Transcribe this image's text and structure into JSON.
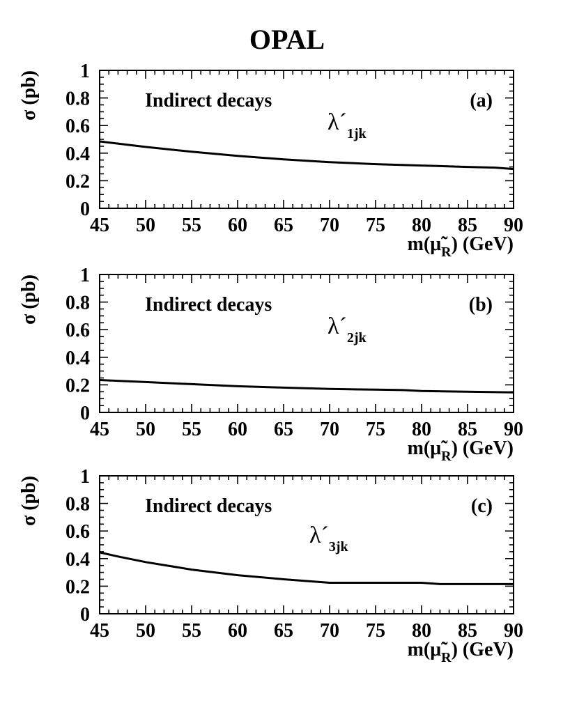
{
  "title": "OPAL",
  "chart_data": [
    {
      "type": "line",
      "panel_label": "(a)",
      "annotation": "Indirect decays",
      "coupling_symbol": "λ´",
      "coupling_subscript": "1jk",
      "ylabel": "σ (pb)",
      "xlabel": "m(μ̃R) (GeV)",
      "xlabel_main": "m(",
      "xlabel_symbol": "μ̃",
      "xlabel_sub": "R",
      "xlabel_units": ") (GeV)",
      "xlim": [
        45,
        90
      ],
      "ylim": [
        0,
        1
      ],
      "x_ticks": [
        45,
        50,
        55,
        60,
        65,
        70,
        75,
        80,
        85,
        90
      ],
      "y_ticks": [
        0,
        0.2,
        0.4,
        0.6,
        0.8,
        1
      ],
      "y_tick_labels": [
        "0",
        "0.2",
        "0.4",
        "0.6",
        "0.8",
        "1"
      ],
      "series": [
        {
          "x": [
            45,
            50,
            55,
            60,
            65,
            70,
            75,
            80,
            85,
            88,
            90
          ],
          "y": [
            0.485,
            0.445,
            0.41,
            0.38,
            0.355,
            0.335,
            0.32,
            0.31,
            0.3,
            0.295,
            0.285
          ]
        }
      ]
    },
    {
      "type": "line",
      "panel_label": "(b)",
      "annotation": "Indirect decays",
      "coupling_symbol": "λ´",
      "coupling_subscript": "2jk",
      "ylabel": "σ (pb)",
      "xlabel": "m(μ̃R) (GeV)",
      "xlabel_main": "m(",
      "xlabel_symbol": "μ̃",
      "xlabel_sub": "R",
      "xlabel_units": ") (GeV)",
      "xlim": [
        45,
        90
      ],
      "ylim": [
        0,
        1
      ],
      "x_ticks": [
        45,
        50,
        55,
        60,
        65,
        70,
        75,
        80,
        85,
        90
      ],
      "y_ticks": [
        0,
        0.2,
        0.4,
        0.6,
        0.8,
        1
      ],
      "y_tick_labels": [
        "0",
        "0.2",
        "0.4",
        "0.6",
        "0.8",
        "1"
      ],
      "series": [
        {
          "x": [
            45,
            50,
            55,
            60,
            65,
            70,
            75,
            78,
            80,
            85,
            90
          ],
          "y": [
            0.235,
            0.22,
            0.205,
            0.19,
            0.18,
            0.17,
            0.165,
            0.162,
            0.155,
            0.15,
            0.145
          ]
        }
      ]
    },
    {
      "type": "line",
      "panel_label": "(c)",
      "annotation": "Indirect decays",
      "coupling_symbol": "λ´",
      "coupling_subscript": "3jk",
      "ylabel": "σ (pb)",
      "xlabel": "m(μ̃R) (GeV)",
      "xlabel_main": "m(",
      "xlabel_symbol": "μ̃",
      "xlabel_sub": "R",
      "xlabel_units": ") (GeV)",
      "xlim": [
        45,
        90
      ],
      "ylim": [
        0,
        1
      ],
      "x_ticks": [
        45,
        50,
        55,
        60,
        65,
        70,
        75,
        80,
        85,
        90
      ],
      "y_ticks": [
        0,
        0.2,
        0.4,
        0.6,
        0.8,
        1
      ],
      "y_tick_labels": [
        "0",
        "0.2",
        "0.4",
        "0.6",
        "0.8",
        "1"
      ],
      "series": [
        {
          "x": [
            45,
            47,
            50,
            55,
            60,
            65,
            70,
            75,
            80,
            82,
            85,
            90
          ],
          "y": [
            0.445,
            0.415,
            0.375,
            0.32,
            0.28,
            0.25,
            0.225,
            0.225,
            0.225,
            0.215,
            0.215,
            0.215
          ]
        }
      ]
    }
  ]
}
